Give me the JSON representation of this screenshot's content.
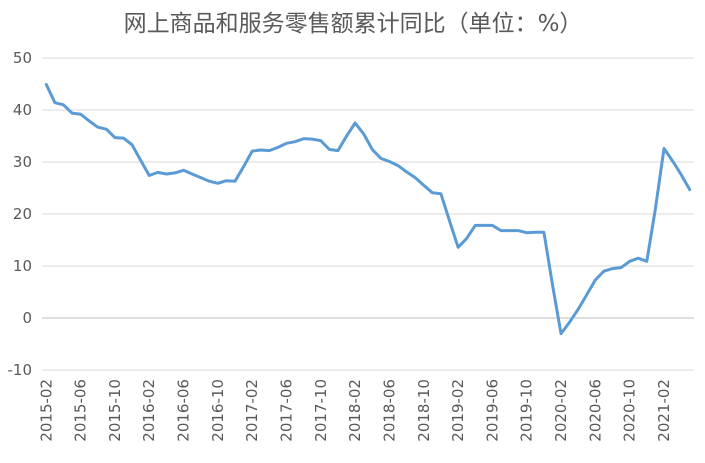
{
  "chart_data": {
    "type": "line",
    "title": "网上商品和服务零售额累计同比（单位：%）",
    "xlabel": "",
    "ylabel": "",
    "ylim": [
      -10,
      50
    ],
    "yticks": [
      -10,
      0,
      10,
      20,
      30,
      40,
      50
    ],
    "grid": true,
    "legend": "none",
    "x_tick_labels": [
      "2015-02",
      "2015-06",
      "2015-10",
      "2016-02",
      "2016-06",
      "2016-10",
      "2017-02",
      "2017-06",
      "2017-10",
      "2018-02",
      "2018-06",
      "2018-10",
      "2019-02",
      "2019-06",
      "2019-10",
      "2020-02",
      "2020-06",
      "2020-10",
      "2021-02"
    ],
    "x_tick_every": 4,
    "line_color": "#5b9bd5",
    "series": [
      {
        "x": [
          "2015-02",
          "2015-03",
          "2015-04",
          "2015-05",
          "2015-06",
          "2015-07",
          "2015-08",
          "2015-09",
          "2015-10",
          "2015-11",
          "2015-12",
          "2016-01",
          "2016-02",
          "2016-03",
          "2016-04",
          "2016-05",
          "2016-06",
          "2016-07",
          "2016-08",
          "2016-09",
          "2016-10",
          "2016-11",
          "2016-12",
          "2017-01",
          "2017-02",
          "2017-03",
          "2017-04",
          "2017-05",
          "2017-06",
          "2017-07",
          "2017-08",
          "2017-09",
          "2017-10",
          "2017-11",
          "2017-12",
          "2018-01",
          "2018-02",
          "2018-03",
          "2018-04",
          "2018-05",
          "2018-06",
          "2018-07",
          "2018-08",
          "2018-09",
          "2018-10",
          "2018-11",
          "2018-12",
          "2019-01",
          "2019-02",
          "2019-03",
          "2019-04",
          "2019-05",
          "2019-06",
          "2019-07",
          "2019-08",
          "2019-09",
          "2019-10",
          "2019-11",
          "2019-12",
          "2020-01",
          "2020-02",
          "2020-03",
          "2020-04",
          "2020-05",
          "2020-06",
          "2020-07",
          "2020-08",
          "2020-09",
          "2020-10",
          "2020-11",
          "2020-12",
          "2021-01",
          "2021-02",
          "2021-03",
          "2021-04",
          "2021-05"
        ],
        "values": [
          44.9,
          41.4,
          41.0,
          39.4,
          39.2,
          37.9,
          36.7,
          36.3,
          34.7,
          34.6,
          33.3,
          30.3,
          27.4,
          28.0,
          27.7,
          27.9,
          28.4,
          27.7,
          27.0,
          26.3,
          25.9,
          26.4,
          26.3,
          29.1,
          32.1,
          32.3,
          32.2,
          32.8,
          33.6,
          33.9,
          34.5,
          34.4,
          34.1,
          32.4,
          32.2,
          35.0,
          37.5,
          35.4,
          32.4,
          30.7,
          30.1,
          29.3,
          28.1,
          27.0,
          25.5,
          24.1,
          23.9,
          18.7,
          13.6,
          15.3,
          17.8,
          17.8,
          17.8,
          16.8,
          16.8,
          16.8,
          16.4,
          16.5,
          16.5,
          6.5,
          -3.0,
          -0.8,
          1.7,
          4.5,
          7.3,
          9.0,
          9.5,
          9.7,
          10.9,
          11.5,
          10.9,
          21.0,
          32.6,
          30.2,
          27.6,
          24.7
        ]
      }
    ]
  }
}
